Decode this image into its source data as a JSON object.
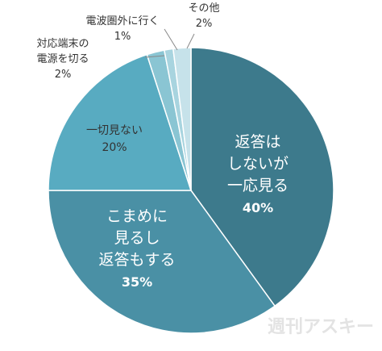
{
  "chart_data": {
    "type": "pie",
    "start_angle_deg": 0,
    "direction": "clockwise",
    "slices": [
      {
        "label_lines": [
          "返答は",
          "しないが",
          "一応見る"
        ],
        "value": 40,
        "value_label": "40%",
        "color": "#3d7a8c"
      },
      {
        "label_lines": [
          "こまめに",
          "見るし",
          "返答もする"
        ],
        "value": 35,
        "value_label": "35%",
        "color": "#4a90a5"
      },
      {
        "label_lines": [
          "一切見ない"
        ],
        "value": 20,
        "value_label": "20%",
        "color": "#58abc1"
      },
      {
        "label_lines": [
          "対応端末の",
          "電源を切る"
        ],
        "value": 2,
        "value_label": "2%",
        "color": "#8ac5d3"
      },
      {
        "label_lines": [
          "電波圏外に行く"
        ],
        "value": 1,
        "value_label": "1%",
        "color": "#a8d4df"
      },
      {
        "label_lines": [
          "その他"
        ],
        "value": 2,
        "value_label": "2%",
        "color": "#c6e2ea"
      }
    ]
  },
  "watermark": "週刊アスキー"
}
